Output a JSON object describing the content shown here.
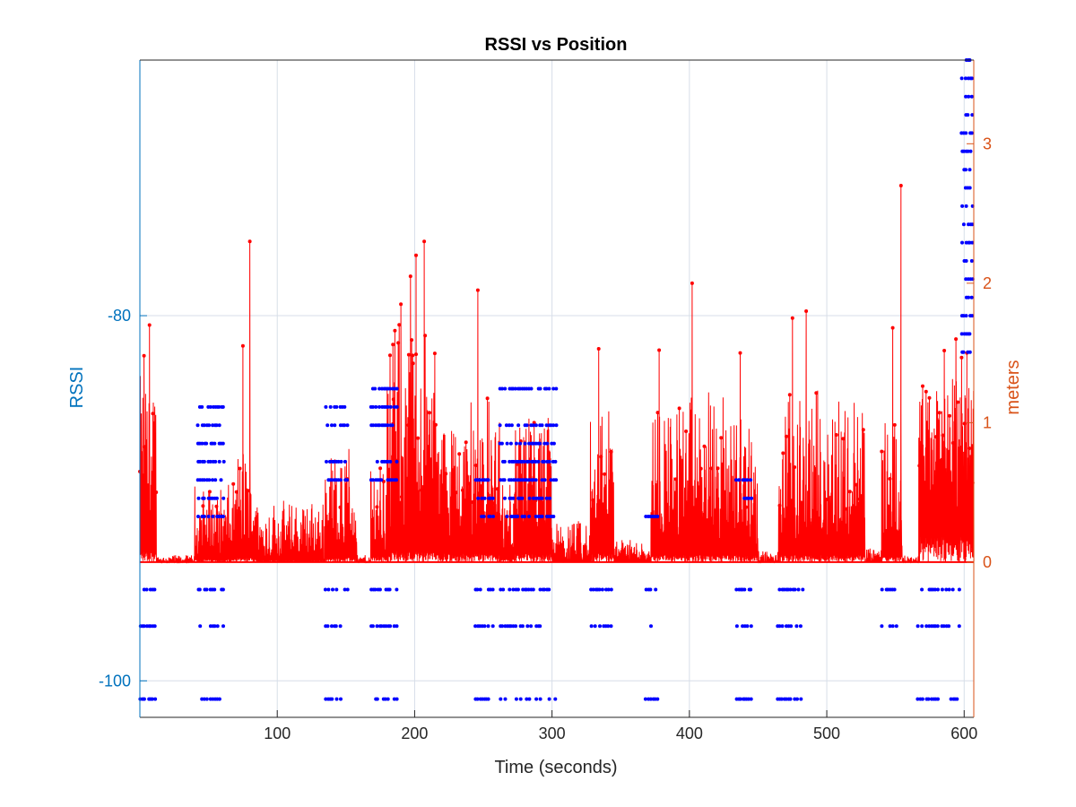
{
  "colors": {
    "left_axis": "#0072BD",
    "right_axis": "#D95319",
    "rssi_series": "#0000FF",
    "meters_series": "#FF0000",
    "grid": "#D7DEE8",
    "axis_black": "#262626"
  },
  "chart_data": {
    "type": "line",
    "title": "RSSI vs Position",
    "xlabel": "Time (seconds)",
    "ylabel_left": "RSSI",
    "ylabel_right": "meters",
    "xlim": [
      0,
      607
    ],
    "ylim_left": [
      -102,
      -66
    ],
    "ylim_right": [
      0,
      3.6
    ],
    "right_zero_at_left": -93.5,
    "grid": true,
    "x_ticks": [
      100,
      200,
      300,
      400,
      500,
      600
    ],
    "x_tick_labels": [
      "100",
      "200",
      "300",
      "400",
      "500",
      "600"
    ],
    "y_left_ticks": [
      -80,
      -100
    ],
    "y_left_tick_labels": [
      "-80",
      "-100"
    ],
    "y_right_ticks": [
      0,
      1,
      2,
      3
    ],
    "y_right_tick_labels": [
      "0",
      "1",
      "2",
      "3"
    ],
    "series": [
      {
        "name": "RSSI",
        "axis": "left",
        "style": "dots",
        "rssi_levels": [
          -95,
          -97,
          -101
        ],
        "bands": [
          {
            "x": [
              0,
              12
            ],
            "levels": [
              -95,
              -97,
              -101
            ]
          },
          {
            "x": [
              42,
              62
            ],
            "levels": [
              -95,
              -97,
              -101,
              -85,
              -86,
              -87,
              -88,
              -89,
              -90,
              -91
            ]
          },
          {
            "x": [
              135,
              152
            ],
            "levels": [
              -95,
              -97,
              -101,
              -85,
              -86,
              -88,
              -89
            ]
          },
          {
            "x": [
              168,
              188
            ],
            "levels": [
              -95,
              -97,
              -101,
              -84,
              -85,
              -86,
              -88,
              -89
            ]
          },
          {
            "x": [
              244,
              258
            ],
            "levels": [
              -95,
              -97,
              -101,
              -89,
              -90,
              -91
            ]
          },
          {
            "x": [
              262,
              304
            ],
            "levels": [
              -95,
              -97,
              -101,
              -84,
              -86,
              -87,
              -88,
              -89,
              -90,
              -91
            ]
          },
          {
            "x": [
              328,
              344
            ],
            "levels": [
              -95,
              -97
            ]
          },
          {
            "x": [
              368,
              378
            ],
            "levels": [
              -95,
              -97,
              -101,
              -91
            ]
          },
          {
            "x": [
              434,
              446
            ],
            "levels": [
              -95,
              -97,
              -101,
              -89,
              -90
            ]
          },
          {
            "x": [
              464,
              484
            ],
            "levels": [
              -95,
              -97,
              -101
            ]
          },
          {
            "x": [
              540,
              552
            ],
            "levels": [
              -95,
              -97
            ]
          },
          {
            "x": [
              566,
              598
            ],
            "levels": [
              -95,
              -97,
              -101
            ]
          },
          {
            "x": [
              598,
              607
            ],
            "levels": [
              -82,
              -81,
              -80,
              -79,
              -78,
              -77,
              -76,
              -75,
              -74,
              -73,
              -72,
              -71,
              -70,
              -69,
              -68,
              -67,
              -66
            ]
          }
        ]
      },
      {
        "name": "meters",
        "axis": "right",
        "style": "stem",
        "segments": [
          {
            "x": [
              0,
              12
            ],
            "base": 0.4,
            "amp": 0.95
          },
          {
            "x": [
              12,
              40
            ],
            "base": 0.0,
            "amp": 0.05
          },
          {
            "x": [
              40,
              70
            ],
            "base": 0.1,
            "amp": 0.45
          },
          {
            "x": [
              70,
              85
            ],
            "base": 0.15,
            "amp": 0.7
          },
          {
            "x": [
              85,
              135
            ],
            "base": 0.05,
            "amp": 0.4
          },
          {
            "x": [
              135,
              158
            ],
            "base": 0.15,
            "amp": 0.7
          },
          {
            "x": [
              158,
              168
            ],
            "base": 0.0,
            "amp": 0.05
          },
          {
            "x": [
              168,
              180
            ],
            "base": 0.2,
            "amp": 0.6
          },
          {
            "x": [
              180,
              215
            ],
            "base": 0.4,
            "amp": 1.3
          },
          {
            "x": [
              215,
              240
            ],
            "base": 0.3,
            "amp": 0.8
          },
          {
            "x": [
              240,
              262
            ],
            "base": 0.3,
            "amp": 0.9
          },
          {
            "x": [
              262,
              272
            ],
            "base": 0.1,
            "amp": 0.5
          },
          {
            "x": [
              272,
              300
            ],
            "base": 0.3,
            "amp": 0.75
          },
          {
            "x": [
              300,
              328
            ],
            "base": 0.0,
            "amp": 0.3
          },
          {
            "x": [
              328,
              345
            ],
            "base": 0.3,
            "amp": 0.9
          },
          {
            "x": [
              345,
              372
            ],
            "base": 0.02,
            "amp": 0.15
          },
          {
            "x": [
              372,
              450
            ],
            "base": 0.25,
            "amp": 0.95
          },
          {
            "x": [
              450,
              465
            ],
            "base": 0.0,
            "amp": 0.08
          },
          {
            "x": [
              465,
              528
            ],
            "base": 0.25,
            "amp": 1.0
          },
          {
            "x": [
              528,
              540
            ],
            "base": 0.0,
            "amp": 0.1
          },
          {
            "x": [
              540,
              555
            ],
            "base": 0.2,
            "amp": 0.9
          },
          {
            "x": [
              555,
              567
            ],
            "base": 0.0,
            "amp": 0.05
          },
          {
            "x": [
              567,
              607
            ],
            "base": 0.9,
            "amp": 0.45
          }
        ],
        "peaks": [
          {
            "x": 3,
            "y": 1.48
          },
          {
            "x": 7,
            "y": 1.7
          },
          {
            "x": 75,
            "y": 1.55
          },
          {
            "x": 80,
            "y": 2.3
          },
          {
            "x": 190,
            "y": 1.85
          },
          {
            "x": 197,
            "y": 2.05
          },
          {
            "x": 201,
            "y": 2.2
          },
          {
            "x": 207,
            "y": 2.3
          },
          {
            "x": 246,
            "y": 1.95
          },
          {
            "x": 287,
            "y": 1.0
          },
          {
            "x": 334,
            "y": 1.53
          },
          {
            "x": 378,
            "y": 1.52
          },
          {
            "x": 402,
            "y": 2.0
          },
          {
            "x": 437,
            "y": 1.5
          },
          {
            "x": 475,
            "y": 1.75
          },
          {
            "x": 485,
            "y": 1.8
          },
          {
            "x": 548,
            "y": 1.68
          },
          {
            "x": 554,
            "y": 2.7
          },
          {
            "x": 594,
            "y": 1.6
          },
          {
            "x": 602,
            "y": 1.5
          }
        ]
      }
    ]
  }
}
